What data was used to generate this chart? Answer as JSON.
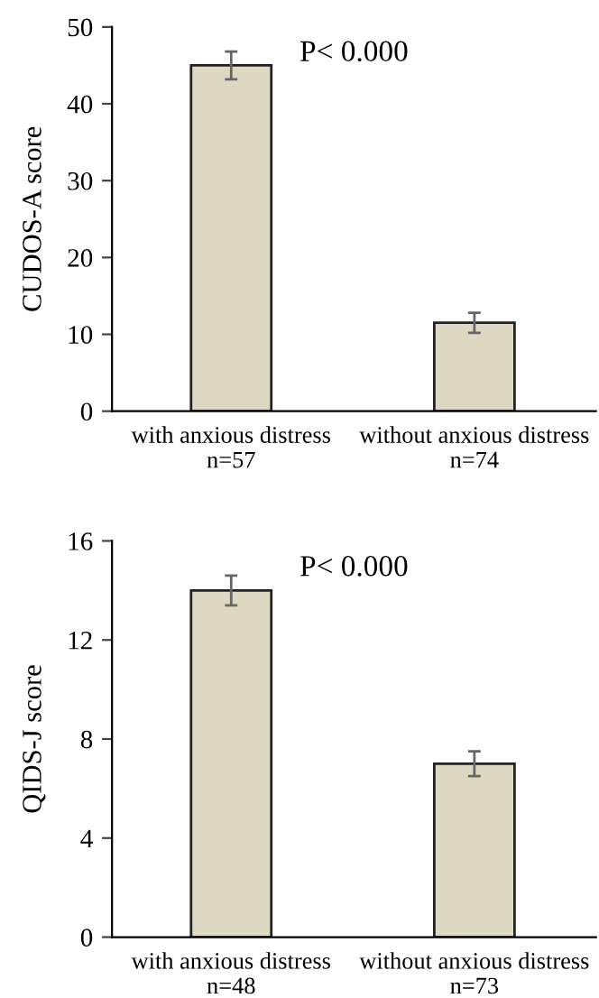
{
  "chart_data": [
    {
      "type": "bar",
      "categories": [
        "with anxious distress\nn=57",
        "without anxious distress\nn=74"
      ],
      "values": [
        45,
        11.5
      ],
      "errors": [
        1.8,
        1.3
      ],
      "color": "#ddd8c2",
      "ylabel": "CUDOS-A score",
      "ylim": [
        0,
        50
      ],
      "yticks": [
        0,
        10,
        20,
        30,
        40,
        50
      ],
      "annotations": [
        "P< 0.000"
      ],
      "grid": false,
      "legend": false
    },
    {
      "type": "bar",
      "categories": [
        "with anxious distress\nn=48",
        "without anxious distress\nn=73"
      ],
      "values": [
        14,
        7
      ],
      "errors": [
        0.6,
        0.5
      ],
      "color": "#ddd8c2",
      "ylabel": "QIDS-J score",
      "ylim": [
        0,
        16
      ],
      "yticks": [
        0,
        4,
        8,
        12,
        16
      ],
      "annotations": [
        "P< 0.000"
      ],
      "grid": false,
      "legend": false
    }
  ]
}
